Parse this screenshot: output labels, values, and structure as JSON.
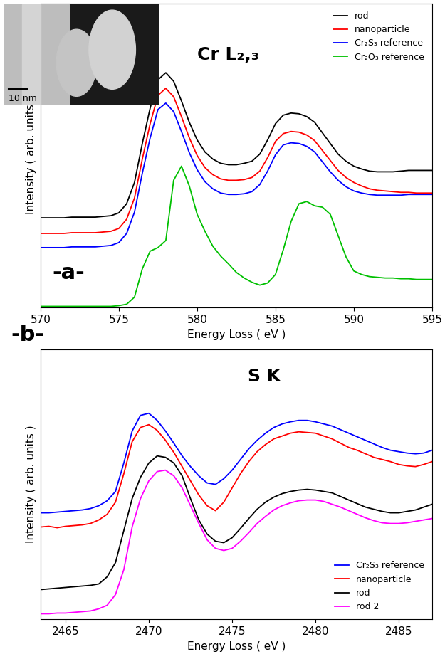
{
  "chart_data": [
    {
      "type": "line",
      "xlabel": "Energy Loss ( eV )",
      "ylabel": "Intensity ( arb. units )",
      "annotations": [
        "-a-",
        "Cr L₂,₃"
      ],
      "x": [
        570,
        570.5,
        571,
        571.5,
        572,
        572.5,
        573,
        573.5,
        574,
        574.5,
        575,
        575.5,
        576,
        576.5,
        577,
        577.5,
        578,
        578.5,
        579,
        579.5,
        580,
        580.5,
        581,
        581.5,
        582,
        582.5,
        583,
        583.5,
        584,
        584.5,
        585,
        585.5,
        586,
        586.5,
        587,
        587.5,
        588,
        588.5,
        589,
        589.5,
        590,
        590.5,
        591,
        591.5,
        592,
        592.5,
        593,
        593.5,
        594,
        594.5,
        595
      ],
      "series": [
        {
          "name": "rod",
          "color": "#000000",
          "values": [
            127,
            127,
            127,
            127,
            128,
            128,
            128,
            128,
            129,
            130,
            134,
            147,
            177,
            232,
            282,
            322,
            332,
            320,
            292,
            262,
            237,
            220,
            210,
            204,
            202,
            202,
            204,
            207,
            217,
            237,
            260,
            272,
            275,
            274,
            270,
            262,
            247,
            232,
            217,
            207,
            200,
            196,
            193,
            192,
            192,
            192,
            193,
            194,
            194,
            194,
            194
          ]
        },
        {
          "name": "nanoparticle",
          "color": "#ff0000",
          "values": [
            105,
            105,
            105,
            105,
            106,
            106,
            106,
            106,
            107,
            108,
            112,
            125,
            155,
            210,
            260,
            300,
            310,
            298,
            270,
            240,
            215,
            198,
            188,
            182,
            180,
            180,
            181,
            184,
            193,
            212,
            235,
            246,
            249,
            248,
            244,
            236,
            222,
            208,
            194,
            184,
            177,
            172,
            168,
            166,
            165,
            164,
            163,
            163,
            162,
            162,
            162
          ]
        },
        {
          "name": "Cr₂S₃ reference",
          "color": "#0000ff",
          "values": [
            85,
            85,
            85,
            85,
            86,
            86,
            86,
            86,
            87,
            88,
            92,
            105,
            135,
            190,
            240,
            280,
            289,
            277,
            249,
            219,
            195,
            178,
            168,
            162,
            160,
            160,
            161,
            164,
            174,
            193,
            216,
            230,
            233,
            232,
            228,
            220,
            206,
            192,
            180,
            171,
            165,
            162,
            160,
            159,
            159,
            159,
            159,
            160,
            160,
            160,
            160
          ]
        },
        {
          "name": "Cr₂O₃ reference",
          "color": "#00c000",
          "values": [
            2,
            2,
            2,
            2,
            2,
            2,
            2,
            2,
            2,
            2,
            3,
            5,
            15,
            55,
            80,
            85,
            95,
            180,
            200,
            172,
            132,
            108,
            87,
            73,
            62,
            50,
            42,
            36,
            32,
            35,
            47,
            82,
            122,
            147,
            150,
            144,
            142,
            132,
            102,
            72,
            52,
            47,
            44,
            43,
            42,
            42,
            41,
            41,
            40,
            40,
            40
          ]
        }
      ],
      "xlim": [
        570,
        595
      ],
      "xticks": [
        570,
        575,
        580,
        585,
        590,
        595
      ],
      "ylim": [
        0,
        430
      ],
      "yticks": [],
      "tick_labels": "x",
      "grid": false,
      "legend": "upper right"
    },
    {
      "type": "line",
      "xlabel": "Energy Loss ( eV )",
      "ylabel": "Intensity ( arb. units )",
      "annotations": [
        "-b-",
        "S K"
      ],
      "x": [
        2463.5,
        2464,
        2464.5,
        2465,
        2465.5,
        2466,
        2466.5,
        2467,
        2467.5,
        2468,
        2468.5,
        2469,
        2469.5,
        2470,
        2470.5,
        2471,
        2471.5,
        2472,
        2472.5,
        2473,
        2473.5,
        2474,
        2474.5,
        2475,
        2475.5,
        2476,
        2476.5,
        2477,
        2477.5,
        2478,
        2478.5,
        2479,
        2479.5,
        2480,
        2480.5,
        2481,
        2481.5,
        2482,
        2482.5,
        2483,
        2483.5,
        2484,
        2484.5,
        2485,
        2485.5,
        2486,
        2486.5,
        2487
      ],
      "series": [
        {
          "name": "Cr₂S₃ reference",
          "color": "#0000ff",
          "values": [
            150,
            150,
            151,
            152,
            153,
            154,
            156,
            160,
            167,
            180,
            220,
            265,
            287,
            290,
            280,
            265,
            248,
            230,
            215,
            202,
            192,
            190,
            198,
            210,
            225,
            240,
            252,
            262,
            270,
            275,
            278,
            280,
            280,
            278,
            275,
            272,
            267,
            262,
            257,
            252,
            247,
            242,
            238,
            236,
            234,
            233,
            234,
            238
          ]
        },
        {
          "name": "nanoparticle",
          "color": "#ff0000",
          "values": [
            130,
            131,
            129,
            131,
            132,
            133,
            135,
            140,
            148,
            165,
            205,
            250,
            270,
            274,
            266,
            252,
            235,
            215,
            195,
            175,
            160,
            153,
            165,
            185,
            205,
            222,
            236,
            246,
            254,
            258,
            262,
            264,
            263,
            262,
            258,
            254,
            248,
            242,
            238,
            233,
            228,
            225,
            222,
            218,
            216,
            215,
            218,
            222
          ]
        },
        {
          "name": "rod",
          "color": "#000000",
          "values": [
            42,
            43,
            44,
            45,
            46,
            47,
            48,
            50,
            60,
            80,
            125,
            170,
            200,
            220,
            230,
            228,
            220,
            202,
            170,
            140,
            120,
            110,
            108,
            115,
            128,
            142,
            155,
            165,
            172,
            177,
            180,
            182,
            183,
            182,
            180,
            178,
            173,
            168,
            163,
            158,
            155,
            152,
            150,
            150,
            152,
            154,
            158,
            162
          ]
        },
        {
          "name": "rod 2",
          "color": "#ff00ff",
          "values": [
            8,
            8,
            9,
            9,
            10,
            11,
            12,
            15,
            20,
            35,
            70,
            130,
            170,
            195,
            208,
            210,
            202,
            185,
            160,
            135,
            112,
            100,
            97,
            100,
            110,
            122,
            135,
            145,
            154,
            160,
            164,
            167,
            168,
            168,
            166,
            162,
            158,
            153,
            148,
            143,
            139,
            136,
            135,
            135,
            136,
            138,
            140,
            142
          ]
        }
      ],
      "xlim": [
        2463.5,
        2487
      ],
      "xticks": [
        2465,
        2470,
        2475,
        2480,
        2485
      ],
      "ylim": [
        0,
        380
      ],
      "yticks": [],
      "tick_labels": "x",
      "grid": false,
      "legend": "lower right"
    }
  ],
  "inset_image": {
    "scale_bar_label": "10 nm"
  }
}
